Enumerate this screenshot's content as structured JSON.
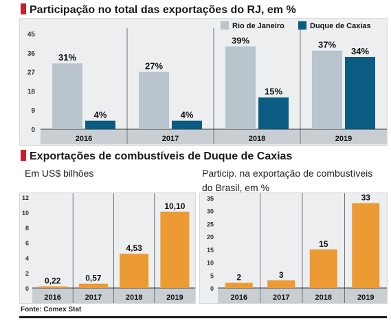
{
  "chart_data": [
    {
      "type": "bar",
      "title": "Participação no total das exportações do RJ, em %",
      "categories": [
        "2016",
        "2017",
        "2018",
        "2019"
      ],
      "series": [
        {
          "name": "Rio de Janeiro",
          "values": [
            31,
            27,
            39,
            37
          ],
          "labels": [
            "31%",
            "27%",
            "39%",
            "37%"
          ],
          "color": "#b9c4cc"
        },
        {
          "name": "Duque de Caxias",
          "values": [
            4,
            4,
            15,
            34
          ],
          "labels": [
            "4%",
            "4%",
            "15%",
            "34%"
          ],
          "color": "#0b5c82"
        }
      ],
      "yticks": [
        "0",
        "9",
        "18",
        "27",
        "36",
        "45"
      ],
      "ylim": [
        0,
        45
      ],
      "grid": false,
      "legend": "top-right"
    },
    {
      "type": "bar",
      "title": "Exportações de combustíveis de Duque de Caxias",
      "subtitle": "Em US$ bilhões",
      "categories": [
        "2016",
        "2017",
        "2018",
        "2019"
      ],
      "values": [
        0.22,
        0.57,
        4.53,
        10.1
      ],
      "labels": [
        "0,22",
        "0,57",
        "4,53",
        "10,10"
      ],
      "color": "#eb9a34",
      "yticks": [
        "0",
        "2",
        "4",
        "6",
        "8",
        "10",
        "12"
      ],
      "ylim": [
        0,
        12
      ]
    },
    {
      "type": "bar",
      "subtitle": "Particip. na exportação de combustíveis do Brasil, em %",
      "categories": [
        "2016",
        "2017",
        "2018",
        "2019"
      ],
      "values": [
        2,
        3,
        15,
        33
      ],
      "labels": [
        "2",
        "3",
        "15",
        "33"
      ],
      "color": "#eb9a34",
      "yticks": [
        "0",
        "5",
        "10",
        "15",
        "20",
        "25",
        "30",
        "35"
      ],
      "ylim": [
        0,
        35
      ]
    }
  ],
  "source": "Fonte: Comex Stat"
}
